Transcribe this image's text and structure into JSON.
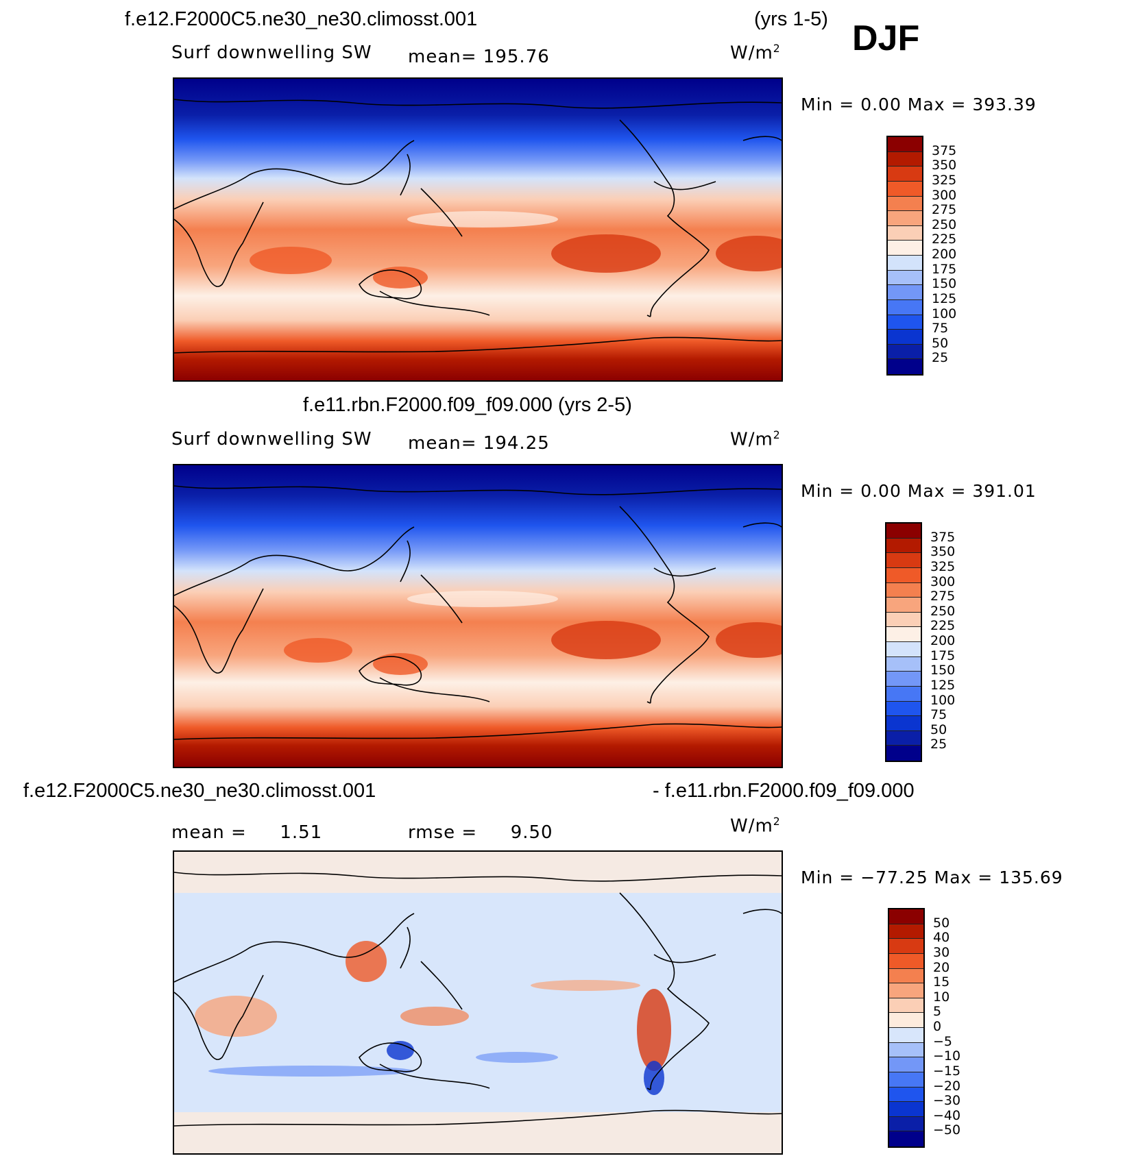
{
  "season": "DJF",
  "colors": {
    "pos_scale": [
      "#00008b",
      "#0a1fa8",
      "#0a35d0",
      "#1f55ee",
      "#4777f5",
      "#7397f7",
      "#a6c0f9",
      "#d3e3fb",
      "#fdf0e6",
      "#fbcfb6",
      "#f8a57d",
      "#f4804f",
      "#ef5a28",
      "#d83a12",
      "#b31a00",
      "#8b0000"
    ],
    "diff_scale": [
      "#00008b",
      "#0a1fa8",
      "#0a35d0",
      "#1f55ee",
      "#4777f5",
      "#7397f7",
      "#a6c0f9",
      "#d8e6fb",
      "#fdebdd",
      "#fbcfb6",
      "#f8a57d",
      "#f4804f",
      "#ef5a28",
      "#d83a12",
      "#b31a00",
      "#8b0000"
    ],
    "coast": "#000000"
  },
  "panels": [
    {
      "title": "f.e12.F2000C5.ne30_ne30.climosst.001",
      "years": "(yrs 1-5)",
      "variable": "Surf downwelling SW",
      "mean_label": "mean=",
      "mean_value": "195.76",
      "units": "W/m",
      "units_exp": "2",
      "min_max": "Min =    0.00 Max = 393.39",
      "colorbar_labels": [
        "375",
        "350",
        "325",
        "300",
        "275",
        "250",
        "225",
        "200",
        "175",
        "150",
        "125",
        "100",
        "75",
        "50",
        "25"
      ]
    },
    {
      "title": "f.e11.rbn.F2000.f09_f09.000 (yrs 2-5)",
      "variable": "Surf downwelling SW",
      "mean_label": "mean=",
      "mean_value": "194.25",
      "units": "W/m",
      "units_exp": "2",
      "min_max": "Min =    0.00 Max = 391.01",
      "colorbar_labels": [
        "375",
        "350",
        "325",
        "300",
        "275",
        "250",
        "225",
        "200",
        "175",
        "150",
        "125",
        "100",
        "75",
        "50",
        "25"
      ]
    },
    {
      "title_left": "f.e12.F2000C5.ne30_ne30.climosst.001",
      "title_right": "- f.e11.rbn.F2000.f09_f09.000",
      "mean_label": "mean =",
      "mean_value": "1.51",
      "rmse_label": "rmse =",
      "rmse_value": "9.50",
      "units": "W/m",
      "units_exp": "2",
      "min_max": "Min = −77.25 Max = 135.69",
      "colorbar_labels": [
        "50",
        "40",
        "30",
        "20",
        "15",
        "10",
        "5",
        "0",
        "−5",
        "−10",
        "−15",
        "−20",
        "−30",
        "−40",
        "−50"
      ]
    }
  ],
  "chart_data": [
    {
      "type": "heatmap",
      "title": "f.e12.F2000C5.ne30_ne30.climosst.001 (yrs 1-5) DJF",
      "variable": "Surf downwelling SW",
      "units": "W/m2",
      "mean": 195.76,
      "min": 0.0,
      "max": 393.39,
      "contour_levels": [
        25,
        50,
        75,
        100,
        125,
        150,
        175,
        200,
        225,
        250,
        275,
        300,
        325,
        350,
        375
      ]
    },
    {
      "type": "heatmap",
      "title": "f.e11.rbn.F2000.f09_f09.000 (yrs 2-5)",
      "variable": "Surf downwelling SW",
      "units": "W/m2",
      "mean": 194.25,
      "min": 0.0,
      "max": 391.01,
      "contour_levels": [
        25,
        50,
        75,
        100,
        125,
        150,
        175,
        200,
        225,
        250,
        275,
        300,
        325,
        350,
        375
      ]
    },
    {
      "type": "heatmap",
      "title": "f.e12.F2000C5.ne30_ne30.climosst.001 - f.e11.rbn.F2000.f09_f09.000",
      "units": "W/m2",
      "mean": 1.51,
      "rmse": 9.5,
      "min": -77.25,
      "max": 135.69,
      "contour_levels": [
        -50,
        -40,
        -30,
        -20,
        -15,
        -10,
        -5,
        0,
        5,
        10,
        15,
        20,
        30,
        40,
        50
      ]
    }
  ]
}
